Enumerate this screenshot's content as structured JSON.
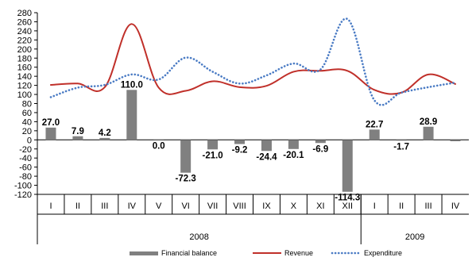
{
  "chart_data": {
    "type": "bar",
    "categories": [
      "I",
      "II",
      "III",
      "IV",
      "V",
      "VI",
      "VII",
      "VIII",
      "IX",
      "X",
      "XI",
      "XII",
      "I",
      "II",
      "III",
      "IV"
    ],
    "groups": [
      {
        "label": "2008",
        "start": 0,
        "end": 11
      },
      {
        "label": "2009",
        "start": 12,
        "end": 15
      }
    ],
    "ylim": [
      -120,
      280
    ],
    "yticks": [
      -120,
      -100,
      -80,
      -60,
      -40,
      -20,
      0,
      20,
      40,
      60,
      80,
      100,
      120,
      140,
      160,
      180,
      200,
      220,
      240,
      260,
      280
    ],
    "ytick_labels": [
      "-120",
      "-100",
      "-80",
      "-60",
      "-40",
      "-20",
      "0",
      "20",
      "40",
      "60",
      "80",
      "100",
      "120",
      "140",
      "160",
      "180",
      "200",
      "220",
      "240",
      "260",
      "280"
    ],
    "legend_position": "bottom",
    "series": [
      {
        "name": "Financial balance",
        "kind": "bar",
        "color": "#808080",
        "values": [
          27.0,
          7.9,
          4.2,
          110.0,
          0.0,
          -72.3,
          -21.0,
          -9.2,
          -24.4,
          -20.1,
          -6.9,
          -114.3,
          22.7,
          -1.7,
          28.9,
          -3.0
        ],
        "labels": [
          "27.0",
          "7.9",
          "4.2",
          "110.0",
          "0.0",
          "-72.3",
          "-21.0",
          "-9.2",
          "-24.4",
          "-20.1",
          "-6.9",
          "-114.3",
          "22.7",
          "-1.7",
          "28.9",
          ""
        ]
      },
      {
        "name": "Revenue",
        "kind": "line",
        "color": "#c0302a",
        "style": "solid",
        "values": [
          121,
          124,
          116,
          255,
          115,
          108,
          129,
          116,
          119,
          150,
          152,
          152,
          110,
          104,
          144,
          123
        ]
      },
      {
        "name": "Expenditure",
        "kind": "line",
        "color": "#4a7bc4",
        "style": "dotted",
        "values": [
          94,
          115,
          121,
          144,
          133,
          181,
          150,
          124,
          142,
          168,
          155,
          266,
          87,
          104,
          116,
          126
        ]
      }
    ]
  }
}
